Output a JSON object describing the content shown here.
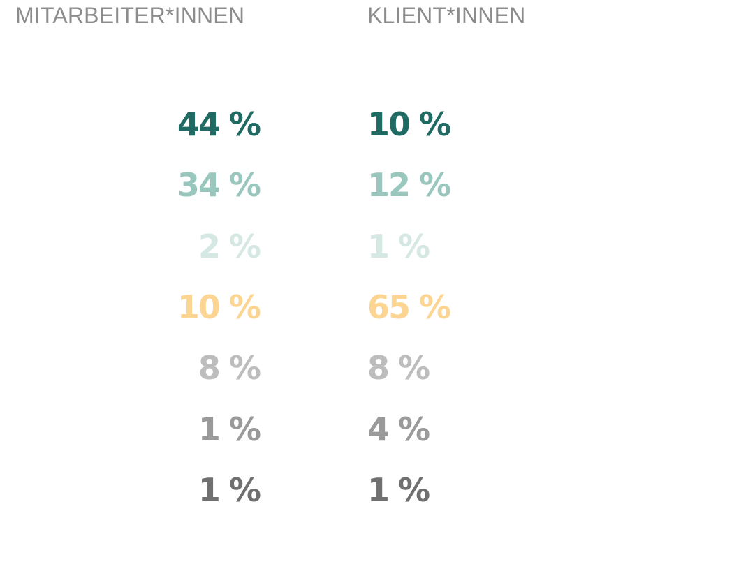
{
  "chart_data": {
    "type": "table",
    "columns": [
      {
        "header": "MITARBEITER*INNEN",
        "values": [
          "44 %",
          "34 %",
          "2 %",
          "10 %",
          "8 %",
          "1 %",
          "1 %"
        ]
      },
      {
        "header": "KLIENT*INNEN",
        "values": [
          "10 %",
          "12 %",
          "1 %",
          "65 %",
          "8 %",
          "4 %",
          "1 %"
        ]
      }
    ],
    "row_colors": [
      "#1f6b63",
      "#9ac7bd",
      "#d5e8e3",
      "#fdd592",
      "#bdbdbd",
      "#9a9a9a",
      "#707070"
    ],
    "header_color": "#8c8c8c"
  }
}
